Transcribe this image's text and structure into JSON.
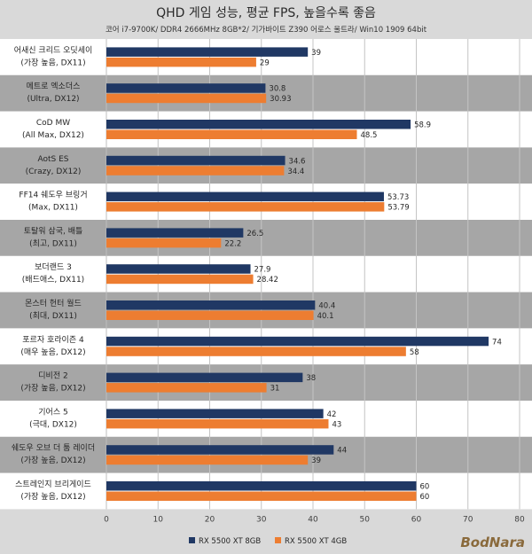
{
  "chart_data": {
    "type": "bar",
    "orientation": "horizontal",
    "title": "QHD 게임 성능, 평균 FPS, 높을수록 좋음",
    "subtitle": "코어 i7-9700K/ DDR4 2666MHz 8GB*2/ 기가바이트 Z390 어로스 울트라/ Win10 1909 64bit",
    "categories": [
      [
        "어새신 크리드 오딧세이",
        "(가장 높음, DX11)"
      ],
      [
        "메트로 엑소더스",
        "(Ultra, DX12)"
      ],
      [
        "CoD MW",
        "(All Max, DX12)"
      ],
      [
        "AotS ES",
        "(Crazy, DX12)"
      ],
      [
        "FF14 쉐도우 브링거",
        "(Max, DX11)"
      ],
      [
        "토탈워 삼국, 배틀",
        "(최고, DX11)"
      ],
      [
        "보더랜드 3",
        "(배드애스, DX11)"
      ],
      [
        "몬스터 헌터 월드",
        "(최대, DX11)"
      ],
      [
        "포르자 호라이즌 4",
        "(매우 높음, DX12)"
      ],
      [
        "디비전 2",
        "(가장 높음, DX12)"
      ],
      [
        "기어스 5",
        "(극대, DX12)"
      ],
      [
        "쉐도우 오브 더 툼 레이더",
        "(가장 높음, DX12)"
      ],
      [
        "스트레인지 브리게이드",
        "(가장 높음, DX12)"
      ]
    ],
    "series": [
      {
        "name": "RX 5500 XT 8GB",
        "color": "#203864",
        "values": [
          39,
          30.8,
          58.9,
          34.6,
          53.73,
          26.5,
          27.9,
          40.4,
          74,
          38,
          42,
          44,
          60
        ],
        "labels": [
          "39",
          "30.8",
          "58.9",
          "34.6",
          "53.73",
          "26.5",
          "27.9",
          "40.4",
          "74",
          "38",
          "42",
          "44",
          "60"
        ]
      },
      {
        "name": "RX 5500 XT 4GB",
        "color": "#ed7d31",
        "values": [
          29,
          30.93,
          48.5,
          34.4,
          53.79,
          22.2,
          28.42,
          40.1,
          58,
          31,
          43,
          39,
          60
        ],
        "labels": [
          "29",
          "30.93",
          "48.5",
          "34.4",
          "53.79",
          "22.2",
          "28.42",
          "40.1",
          "58",
          "31",
          "43",
          "39",
          "60"
        ]
      }
    ],
    "xlim": [
      0,
      80
    ],
    "ticks": [
      0,
      10,
      20,
      30,
      40,
      50,
      60,
      70,
      80
    ],
    "row_backgrounds": [
      "#ffffff",
      "#a6a6a6"
    ],
    "legend_position": "bottom"
  },
  "watermark": "BodNara"
}
